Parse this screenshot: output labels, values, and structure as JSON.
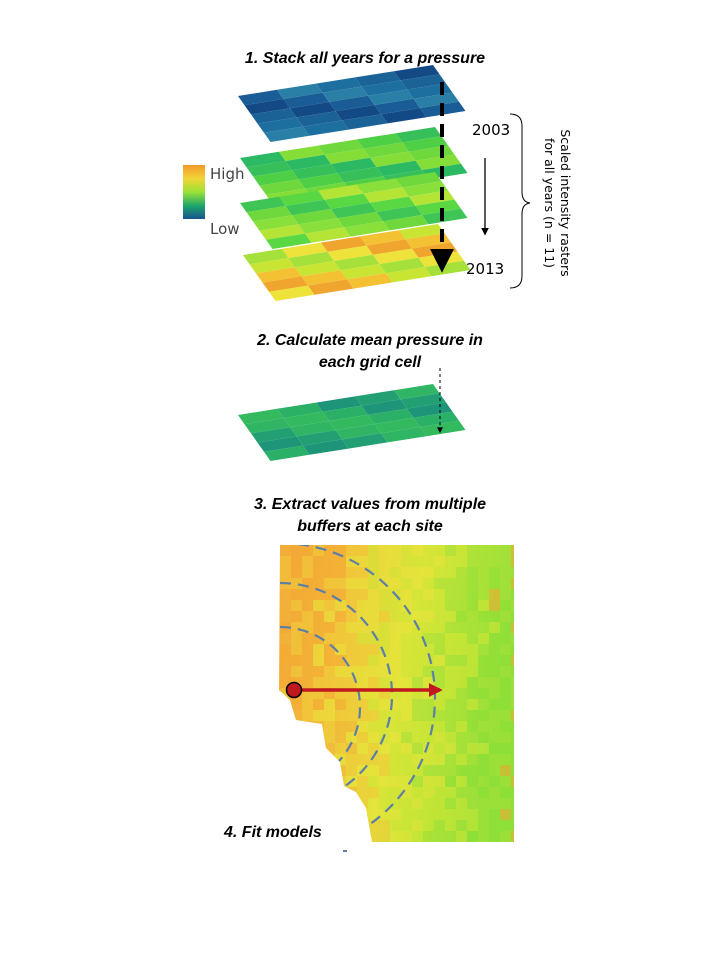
{
  "steps": [
    "1. Stack all years for a pressure",
    "2. Calculate mean pressure in each grid cell",
    "3. Extract  values from multiple buffers at each site",
    "4. Fit models"
  ],
  "step2_lines": [
    "2. Calculate mean pressure in",
    "each grid cell"
  ],
  "step3_lines": [
    "3. Extract  values from multiple",
    "buffers at each site"
  ],
  "legend": {
    "high": "High",
    "low": "Low"
  },
  "years": {
    "start": "2003",
    "end": "2013"
  },
  "side_label_lines": [
    "Scaled intensity rasters",
    "for all years (n = 11)"
  ],
  "colors": {
    "high": "#f39a2c",
    "mid_high": "#f1d437",
    "mid": "#9be236",
    "mid_low": "#1ea76b",
    "low": "#17548f",
    "arrow_red": "#c0181e",
    "buffer_dash": "#5c7fa8"
  },
  "layers": [
    {
      "name": "year-2003",
      "palette": [
        "#1a5c96",
        "#1d6fa0",
        "#134a86",
        "#2a7fa7",
        "#1b6396"
      ]
    },
    {
      "name": "year-mid-1",
      "palette": [
        "#4fcf46",
        "#2cb964",
        "#6fd83c",
        "#37c05a",
        "#85de38"
      ]
    },
    {
      "name": "year-mid-2",
      "palette": [
        "#5ad844",
        "#8ae03a",
        "#3fc456",
        "#b4e436",
        "#6fd83c"
      ]
    },
    {
      "name": "year-2013",
      "palette": [
        "#c9e534",
        "#ede33a",
        "#f3c132",
        "#a6e03a",
        "#f0a52e"
      ]
    }
  ],
  "mean_layer": {
    "name": "mean",
    "palette": [
      "#2bb067",
      "#22a073",
      "#34ba5e",
      "#1e9578",
      "#2fb563"
    ]
  }
}
